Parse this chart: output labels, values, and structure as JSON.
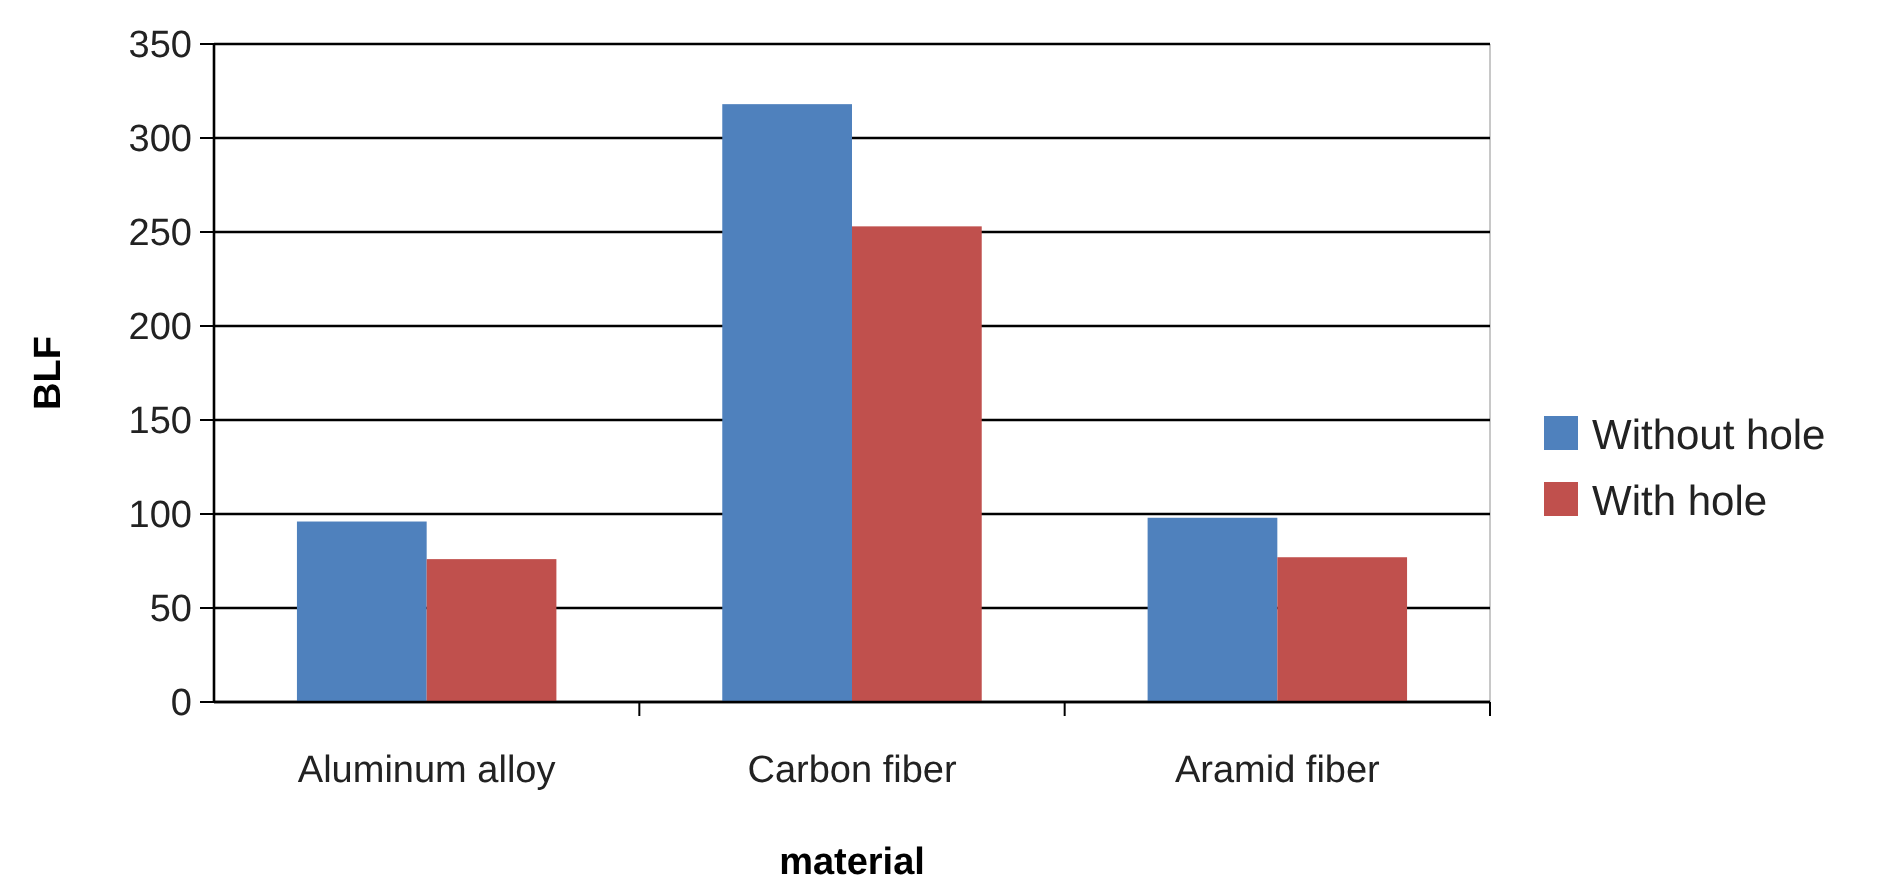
{
  "chart_data": {
    "type": "bar",
    "xlabel": "material",
    "ylabel": "BLF",
    "categories": [
      "Aluminum alloy",
      "Carbon fiber",
      "Aramid fiber"
    ],
    "series": [
      {
        "name": "Without hole",
        "color": "#4f81bd",
        "values": [
          96,
          318,
          98
        ]
      },
      {
        "name": "With hole",
        "color": "#c0504d",
        "values": [
          76,
          253,
          77
        ]
      }
    ],
    "ylim": [
      0,
      350
    ],
    "yticks": [
      0,
      50,
      100,
      150,
      200,
      250,
      300,
      350
    ],
    "grid": "y",
    "legend": "right"
  }
}
